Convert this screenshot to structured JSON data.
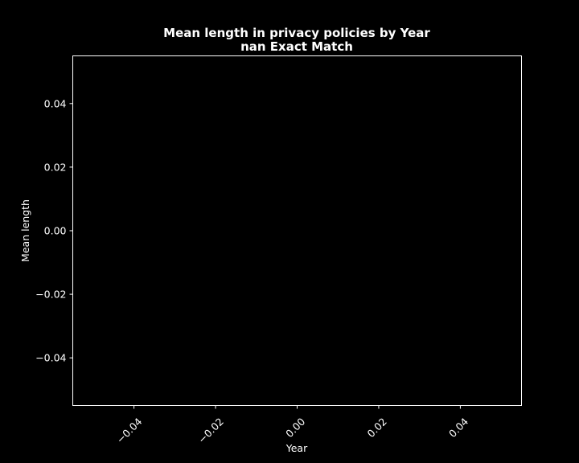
{
  "chart_data": {
    "type": "line",
    "title": "Mean length in privacy policies by Year",
    "subtitle": "nan Exact Match",
    "xlabel": "Year",
    "ylabel": "Mean length",
    "xlim": [
      -0.055,
      0.055
    ],
    "ylim": [
      -0.055,
      0.055
    ],
    "x_ticks": [
      -0.04,
      -0.02,
      0.0,
      0.02,
      0.04
    ],
    "x_tick_labels": [
      "−0.04",
      "−0.02",
      "0.00",
      "0.02",
      "0.04"
    ],
    "y_ticks": [
      0.04,
      0.02,
      0.0,
      -0.02,
      -0.04
    ],
    "y_tick_labels": [
      "0.04",
      "0.02",
      "0.00",
      "−0.02",
      "−0.04"
    ],
    "x_tick_rotation": 45,
    "grid": false,
    "series": [],
    "colors": {
      "background": "#000000",
      "foreground": "#ffffff"
    }
  }
}
